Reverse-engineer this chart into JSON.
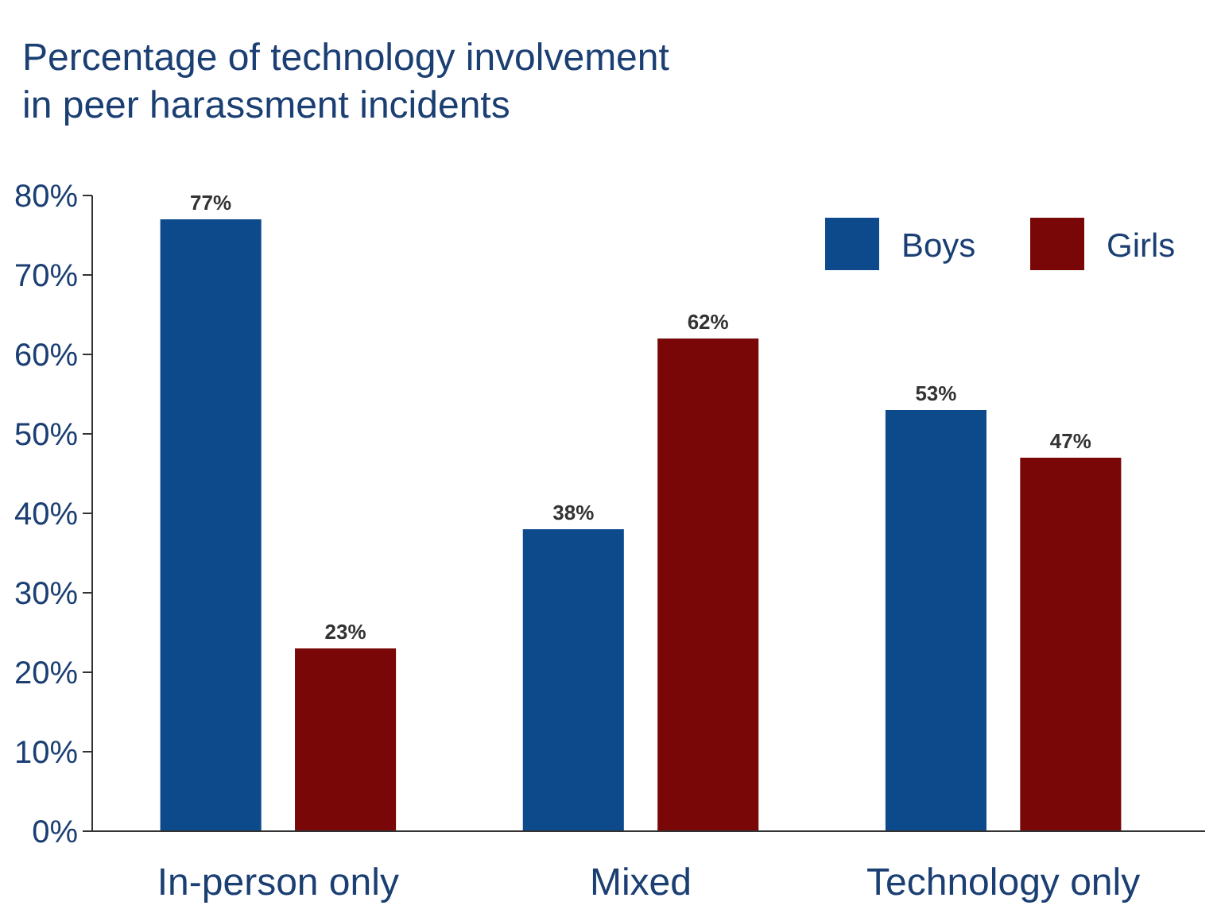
{
  "chart_data": {
    "type": "bar",
    "title": "Percentage of technology involvement\nin peer harassment incidents",
    "categories": [
      "In-person only",
      "Mixed",
      "Technology only"
    ],
    "series": [
      {
        "name": "Boys",
        "color": "#0c4a8c",
        "values": [
          77,
          38,
          53
        ],
        "value_labels": [
          "77%",
          "38%",
          "53%"
        ]
      },
      {
        "name": "Girls",
        "color": "#7a0707",
        "values": [
          23,
          62,
          47
        ],
        "value_labels": [
          "23%",
          "62%",
          "47%"
        ]
      }
    ],
    "ylim": [
      0,
      80
    ],
    "yticks": [
      {
        "value": 0,
        "label": "0%"
      },
      {
        "value": 10,
        "label": "10%"
      },
      {
        "value": 20,
        "label": "20%"
      },
      {
        "value": 30,
        "label": "30%"
      },
      {
        "value": 40,
        "label": "40%"
      },
      {
        "value": 50,
        "label": "50%"
      },
      {
        "value": 60,
        "label": "60%"
      },
      {
        "value": 70,
        "label": "70%"
      },
      {
        "value": 80,
        "label": "80%"
      }
    ],
    "grid": false,
    "legend": "top right"
  }
}
